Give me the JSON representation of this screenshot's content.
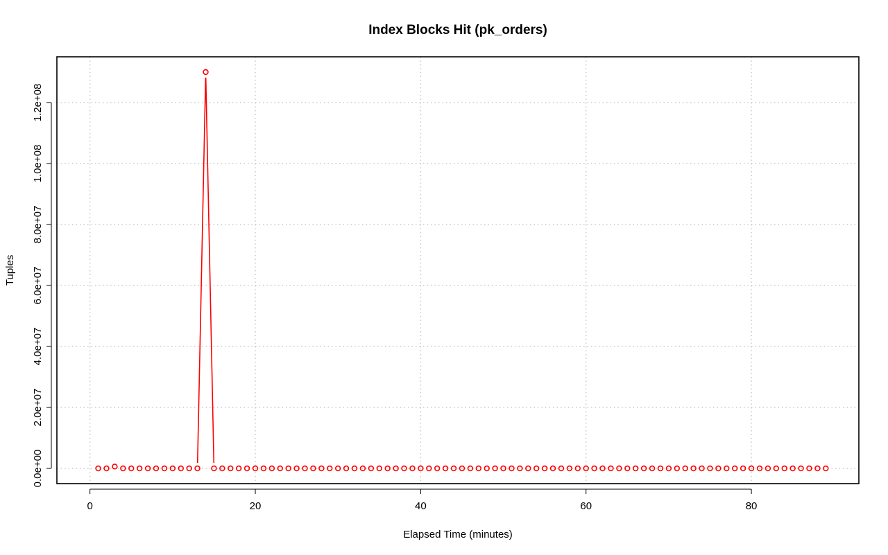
{
  "chart_data": {
    "type": "line",
    "title": "Index Blocks Hit (pk_orders)",
    "xlabel": "Elapsed Time (minutes)",
    "ylabel": "Tuples",
    "xlim": [
      -4,
      93
    ],
    "ylim": [
      -5000000,
      135000000
    ],
    "x_ticks": [
      0,
      20,
      40,
      60,
      80
    ],
    "x_tick_labels": [
      "0",
      "20",
      "40",
      "60",
      "80"
    ],
    "y_ticks": [
      0,
      20000000,
      40000000,
      60000000,
      80000000,
      100000000,
      120000000
    ],
    "y_tick_labels": [
      "0.0e+00",
      "2.0e+07",
      "4.0e+07",
      "6.0e+07",
      "8.0e+07",
      "1.0e+08",
      "1.2e+08"
    ],
    "grid": true,
    "color": "#ff0000",
    "series": [
      {
        "x": [
          1,
          2,
          3,
          4,
          5,
          6,
          7,
          8,
          9,
          10,
          11,
          12,
          13,
          14,
          15,
          16,
          17,
          18,
          19,
          20,
          21,
          22,
          23,
          24,
          25,
          26,
          27,
          28,
          29,
          30,
          31,
          32,
          33,
          34,
          35,
          36,
          37,
          38,
          39,
          40,
          41,
          42,
          43,
          44,
          45,
          46,
          47,
          48,
          49,
          50,
          51,
          52,
          53,
          54,
          55,
          56,
          57,
          58,
          59,
          60,
          61,
          62,
          63,
          64,
          65,
          66,
          67,
          68,
          69,
          70,
          71,
          72,
          73,
          74,
          75,
          76,
          77,
          78,
          79,
          80,
          81,
          82,
          83,
          84,
          85,
          86,
          87,
          88,
          89
        ],
        "values": [
          0,
          0,
          600000,
          0,
          0,
          0,
          0,
          0,
          0,
          0,
          0,
          0,
          0,
          130000000,
          0,
          0,
          0,
          0,
          0,
          0,
          0,
          0,
          0,
          0,
          0,
          0,
          0,
          0,
          0,
          0,
          0,
          0,
          0,
          0,
          0,
          0,
          0,
          0,
          0,
          0,
          0,
          0,
          0,
          0,
          0,
          0,
          0,
          0,
          0,
          0,
          0,
          0,
          0,
          0,
          0,
          0,
          0,
          0,
          0,
          0,
          0,
          0,
          0,
          0,
          0,
          0,
          0,
          0,
          0,
          0,
          0,
          0,
          0,
          0,
          0,
          0,
          0,
          0,
          0,
          0,
          0,
          0,
          0,
          0,
          0,
          0,
          0,
          0,
          0
        ]
      }
    ]
  }
}
